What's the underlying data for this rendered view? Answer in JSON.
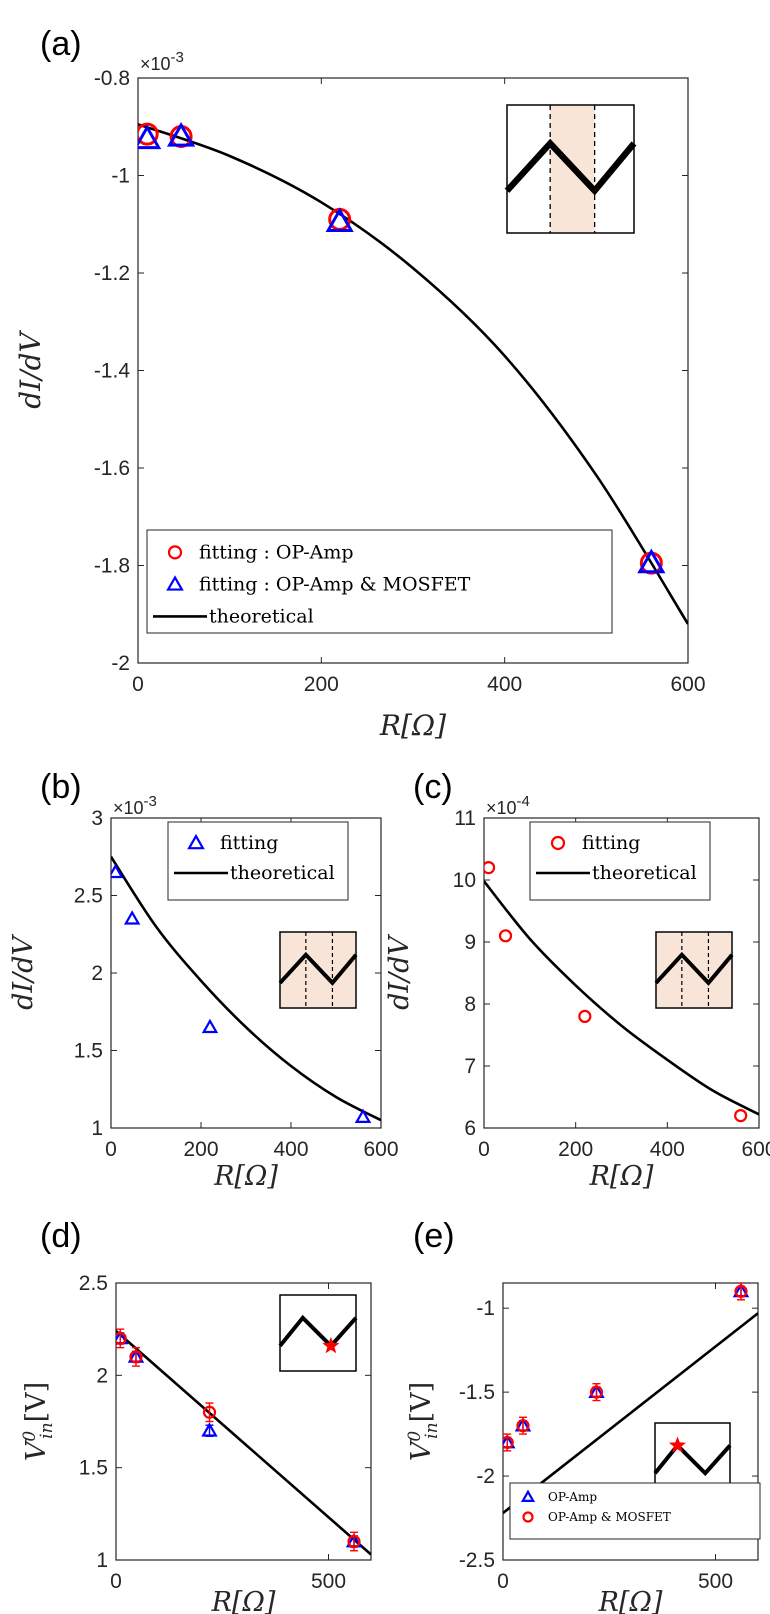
{
  "colors": {
    "fitting_op_amp": "#ff0000",
    "fitting_op_amp_mosfet": "#0000ff",
    "theoretical": "#000000",
    "inset_shade": "#f8e5d8",
    "star": "#ff0000"
  },
  "chart_data": [
    {
      "id": "a",
      "panel_label": "(a)",
      "type": "scatter",
      "xlabel": "R[Ω]",
      "ylabel": "dI/dV",
      "exponent": "×10",
      "exponent_power": "-3",
      "xlim": [
        0,
        600
      ],
      "ylim": [
        -2,
        -0.8
      ],
      "xticks": [
        0,
        200,
        400,
        600
      ],
      "yticks": [
        -2,
        -1.8,
        -1.6,
        -1.4,
        -1.2,
        -1,
        -0.8
      ],
      "xtick_labels": [
        "0",
        "200",
        "400",
        "600"
      ],
      "ytick_labels": [
        "-2",
        "-1.8",
        "-1.6",
        "-1.4",
        "-1.2",
        "-1",
        "-0.8"
      ],
      "legend_position": "bottom-left",
      "series": [
        {
          "name": "fitting : OP-Amp",
          "marker": "circle",
          "color": "#ff0000",
          "x": [
            10,
            47,
            220,
            560
          ],
          "y": [
            -0.915,
            -0.92,
            -1.09,
            -1.795
          ]
        },
        {
          "name": "fitting : OP-Amp & MOSFET",
          "marker": "triangle",
          "color": "#0000ff",
          "x": [
            10,
            47,
            220,
            560
          ],
          "y": [
            -0.925,
            -0.92,
            -1.095,
            -1.795
          ]
        },
        {
          "name": "theoretical",
          "marker": "line",
          "color": "#000000",
          "x": [
            0,
            100,
            200,
            300,
            400,
            500,
            600
          ],
          "y": [
            -0.895,
            -0.96,
            -1.055,
            -1.19,
            -1.37,
            -1.615,
            -1.92
          ]
        }
      ],
      "inset": "shaded-middle"
    },
    {
      "id": "b",
      "panel_label": "(b)",
      "type": "scatter",
      "xlabel": "R[Ω]",
      "ylabel": "dI/dV",
      "exponent": "×10",
      "exponent_power": "-3",
      "xlim": [
        0,
        600
      ],
      "ylim": [
        1,
        3
      ],
      "xticks": [
        0,
        200,
        400,
        600
      ],
      "yticks": [
        1,
        1.5,
        2,
        2.5,
        3
      ],
      "xtick_labels": [
        "0",
        "200",
        "400",
        "600"
      ],
      "ytick_labels": [
        "1",
        "1.5",
        "2",
        "2.5",
        "3"
      ],
      "legend_position": "top-right",
      "series": [
        {
          "name": "fitting",
          "marker": "triangle",
          "color": "#0000ff",
          "x": [
            10,
            47,
            220,
            560
          ],
          "y": [
            2.65,
            2.35,
            1.65,
            1.07
          ]
        },
        {
          "name": "theoretical",
          "marker": "line",
          "color": "#000000",
          "x": [
            0,
            100,
            200,
            300,
            400,
            500,
            600
          ],
          "y": [
            2.75,
            2.3,
            1.95,
            1.65,
            1.4,
            1.2,
            1.05
          ]
        }
      ],
      "inset": "shaded-full"
    },
    {
      "id": "c",
      "panel_label": "(c)",
      "type": "scatter",
      "xlabel": "R[Ω]",
      "ylabel": "dI/dV",
      "exponent": "×10",
      "exponent_power": "-4",
      "xlim": [
        0,
        600
      ],
      "ylim": [
        6,
        11
      ],
      "xticks": [
        0,
        200,
        400,
        600
      ],
      "yticks": [
        6,
        7,
        8,
        9,
        10,
        11
      ],
      "xtick_labels": [
        "0",
        "200",
        "400",
        "600"
      ],
      "ytick_labels": [
        "6",
        "7",
        "8",
        "9",
        "10",
        "11"
      ],
      "legend_position": "top-right",
      "series": [
        {
          "name": "fitting",
          "marker": "circle",
          "color": "#ff0000",
          "x": [
            10,
            47,
            220,
            560
          ],
          "y": [
            10.2,
            9.1,
            7.8,
            6.2
          ]
        },
        {
          "name": "theoretical",
          "marker": "line",
          "color": "#000000",
          "x": [
            0,
            100,
            200,
            300,
            400,
            500,
            600
          ],
          "y": [
            9.98,
            9.05,
            8.3,
            7.65,
            7.1,
            6.6,
            6.22
          ]
        }
      ],
      "inset": "shaded-full"
    },
    {
      "id": "d",
      "panel_label": "(d)",
      "type": "scatter",
      "xlabel": "R[Ω]",
      "ylabel": "V",
      "ylabel_sub": "in",
      "ylabel_sup": "0",
      "ylabel_unit": "[V]",
      "xlim": [
        0,
        600
      ],
      "ylim": [
        1,
        2.5
      ],
      "xticks": [
        0,
        500
      ],
      "yticks": [
        1,
        1.5,
        2,
        2.5
      ],
      "xtick_labels": [
        "0",
        "500"
      ],
      "ytick_labels": [
        "1",
        "1.5",
        "2",
        "2.5"
      ],
      "series": [
        {
          "name": "OP-Amp",
          "marker": "triangle",
          "color": "#0000ff",
          "x": [
            10,
            47,
            220,
            560
          ],
          "y": [
            2.2,
            2.1,
            1.7,
            1.1
          ],
          "err": [
            0.03,
            0.03,
            0.03,
            0.03
          ]
        },
        {
          "name": "OP-Amp & MOSFET",
          "marker": "circle",
          "color": "#ff0000",
          "x": [
            10,
            47,
            220,
            560
          ],
          "y": [
            2.2,
            2.1,
            1.8,
            1.1
          ],
          "err": [
            0.05,
            0.05,
            0.05,
            0.05
          ]
        },
        {
          "name": "theoretical",
          "marker": "line",
          "color": "#000000",
          "x": [
            0,
            600
          ],
          "y": [
            2.24,
            1.03
          ]
        }
      ],
      "inset": "star-right"
    },
    {
      "id": "e",
      "panel_label": "(e)",
      "type": "scatter",
      "xlabel": "R[Ω]",
      "ylabel": "V",
      "ylabel_sub": "in",
      "ylabel_sup": "0",
      "ylabel_unit": "[V]",
      "xlim": [
        0,
        600
      ],
      "ylim": [
        -2.5,
        -0.85
      ],
      "xticks": [
        0,
        500
      ],
      "yticks": [
        -2.5,
        -2,
        -1.5,
        -1
      ],
      "xtick_labels": [
        "0",
        "500"
      ],
      "ytick_labels": [
        "-2.5",
        "-2",
        "-1.5",
        "-1"
      ],
      "legend_position": "bottom-left",
      "series": [
        {
          "name": "OP-Amp",
          "marker": "triangle",
          "color": "#0000ff",
          "x": [
            10,
            47,
            220,
            560
          ],
          "y": [
            -1.8,
            -1.7,
            -1.5,
            -0.9
          ],
          "err": [
            0.03,
            0.03,
            0.03,
            0.03
          ]
        },
        {
          "name": "OP-Amp & MOSFET",
          "marker": "circle",
          "color": "#ff0000",
          "x": [
            10,
            47,
            220,
            560
          ],
          "y": [
            -1.8,
            -1.7,
            -1.5,
            -0.9
          ],
          "err": [
            0.05,
            0.05,
            0.05,
            0.05
          ]
        },
        {
          "name": "",
          "marker": "line",
          "color": "#000000",
          "x": [
            0,
            600
          ],
          "y": [
            -2.22,
            -1.03
          ]
        }
      ],
      "inset": "star-left"
    }
  ]
}
